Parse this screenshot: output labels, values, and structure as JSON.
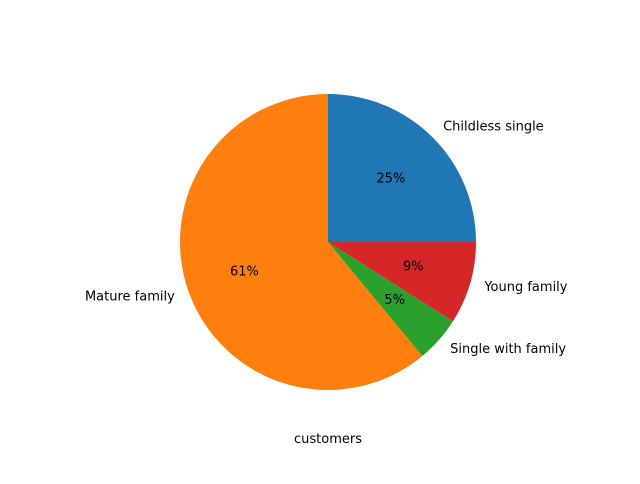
{
  "chart_data": {
    "type": "pie",
    "title": "",
    "xlabel": "customers",
    "ylabel": "",
    "start_angle_deg": 0,
    "direction": "counterclockwise",
    "slices": [
      {
        "label": "Childless single",
        "value": 25,
        "pct_label": "25%",
        "color": "#1f77b4"
      },
      {
        "label": "Mature family",
        "value": 61,
        "pct_label": "61%",
        "color": "#ff7f0e"
      },
      {
        "label": "Single with family",
        "value": 5,
        "pct_label": "5%",
        "color": "#2ca02c"
      },
      {
        "label": "Young family",
        "value": 9,
        "pct_label": "9%",
        "color": "#d62728"
      }
    ]
  }
}
